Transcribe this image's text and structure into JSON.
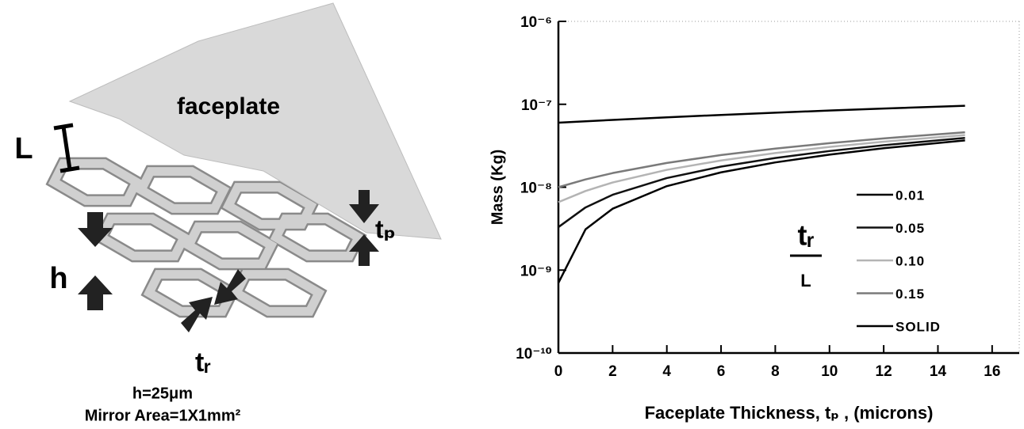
{
  "diagram": {
    "faceplate_label": "faceplate",
    "rib_length_label": "L",
    "height_label": "h",
    "rib_thickness_label": "tᵣ",
    "faceplate_thickness_label": "tₚ",
    "caption_height": "h=25μm",
    "caption_area": "Mirror Area=1X1mm²"
  },
  "chart_data": {
    "type": "line",
    "xlabel": "Faceplate Thickness, tₚ , (microns)",
    "ylabel": "Mass  (Kg)",
    "y_log": true,
    "xlim": [
      0,
      17
    ],
    "xticks": [
      0,
      2,
      4,
      6,
      8,
      10,
      12,
      14,
      16
    ],
    "ylim": [
      1e-10,
      1e-06
    ],
    "yticks": [
      {
        "value": 1e-10,
        "label": "10⁻¹⁰"
      },
      {
        "value": 1e-09,
        "label": "10⁻⁹"
      },
      {
        "value": 1e-08,
        "label": "10⁻⁸"
      },
      {
        "value": 1e-07,
        "label": "10⁻⁷"
      },
      {
        "value": 1e-06,
        "label": "10⁻⁶"
      }
    ],
    "legend_title": {
      "numerator": "tᵣ",
      "denominator": "L"
    },
    "x": [
      0,
      1,
      2,
      4,
      6,
      8,
      10,
      12,
      15
    ],
    "series": [
      {
        "name": "0.01",
        "color": "#000000",
        "values": [
          7e-10,
          3.1e-09,
          5.5e-09,
          1.03e-08,
          1.51e-08,
          1.99e-08,
          2.47e-08,
          2.95e-08,
          3.67e-08
        ]
      },
      {
        "name": "0.05",
        "color": "#111111",
        "values": [
          3.3e-09,
          5.7e-09,
          8.1e-09,
          1.29e-08,
          1.77e-08,
          2.25e-08,
          2.73e-08,
          3.21e-08,
          3.93e-08
        ]
      },
      {
        "name": "0.10",
        "color": "#b4b4b4",
        "values": [
          6.6e-09,
          9e-09,
          1.14e-08,
          1.62e-08,
          2.1e-08,
          2.58e-08,
          3.06e-08,
          3.54e-08,
          4.26e-08
        ]
      },
      {
        "name": "0.15",
        "color": "#7a7a7a",
        "values": [
          1e-08,
          1.24e-08,
          1.48e-08,
          1.96e-08,
          2.44e-08,
          2.92e-08,
          3.4e-08,
          3.88e-08,
          4.6e-08
        ]
      },
      {
        "name": "SOLID",
        "color": "#000000",
        "values": [
          6e-08,
          6.24e-08,
          6.48e-08,
          6.96e-08,
          7.44e-08,
          7.92e-08,
          8.4e-08,
          8.88e-08,
          9.6e-08
        ]
      }
    ]
  }
}
